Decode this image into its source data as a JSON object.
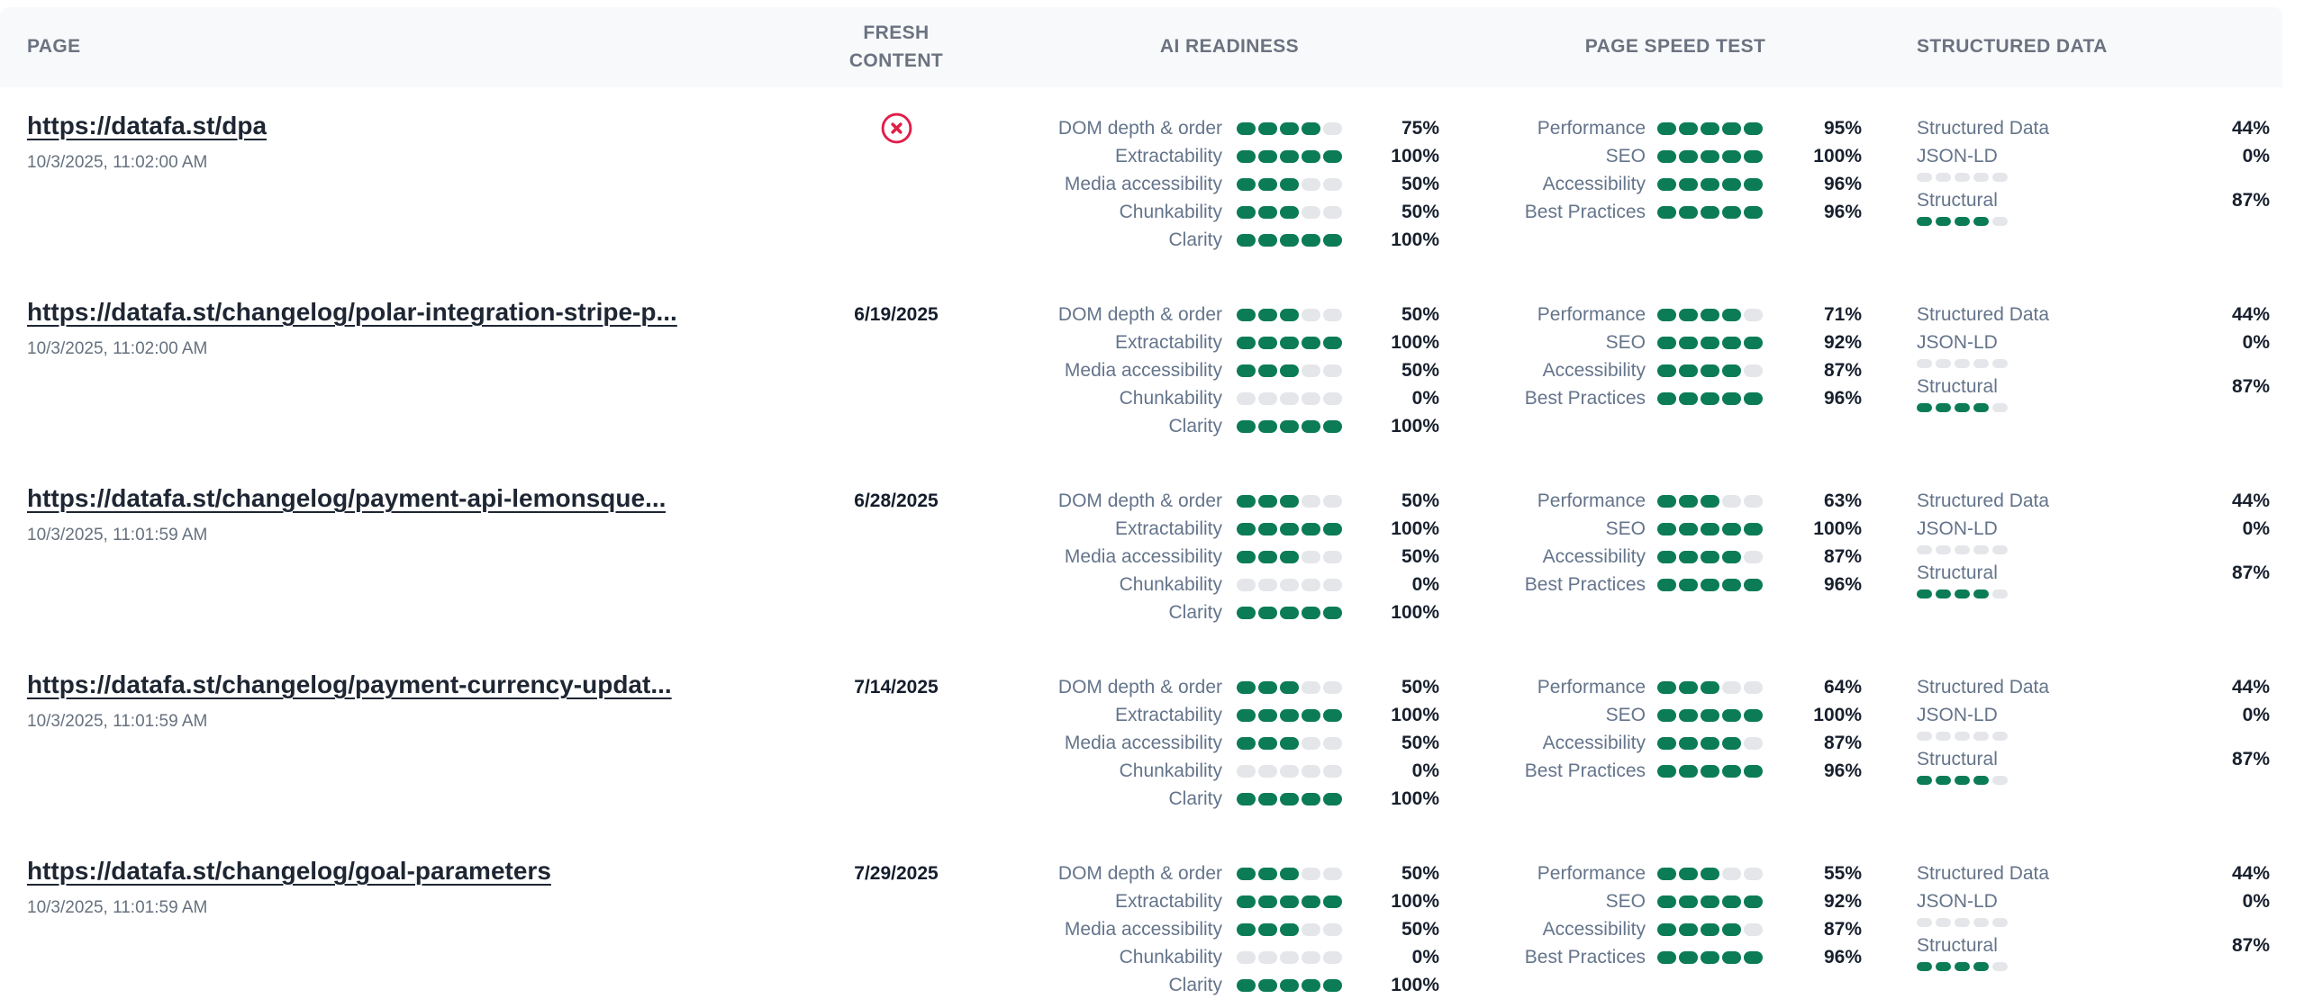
{
  "colors": {
    "green_dot": "#0b7c55",
    "empty_dot": "#e4e6ea",
    "stale_icon_red": "#e11d48"
  },
  "header": {
    "columns": [
      "PAGE",
      "FRESH CONTENT",
      "AI READINESS",
      "PAGE SPEED TEST",
      "STRUCTURED DATA"
    ]
  },
  "rows": [
    {
      "url": "https://datafa.st/dpa",
      "scanned_at": "10/3/2025, 11:02:00 AM",
      "fresh_content": {
        "value": null,
        "icon": "circle-x-icon"
      },
      "ai_readiness": [
        {
          "label": "DOM depth & order",
          "percent": "75%",
          "dots_filled": 4,
          "dots_total": 5
        },
        {
          "label": "Extractability",
          "percent": "100%",
          "dots_filled": 5,
          "dots_total": 5
        },
        {
          "label": "Media accessibility",
          "percent": "50%",
          "dots_filled": 3,
          "dots_total": 5
        },
        {
          "label": "Chunkability",
          "percent": "50%",
          "dots_filled": 3,
          "dots_total": 5
        },
        {
          "label": "Clarity",
          "percent": "100%",
          "dots_filled": 5,
          "dots_total": 5
        }
      ],
      "page_speed": [
        {
          "label": "Performance",
          "percent": "95%",
          "dots_filled": 5,
          "dots_total": 5
        },
        {
          "label": "SEO",
          "percent": "100%",
          "dots_filled": 5,
          "dots_total": 5
        },
        {
          "label": "Accessibility",
          "percent": "96%",
          "dots_filled": 5,
          "dots_total": 5
        },
        {
          "label": "Best Practices",
          "percent": "96%",
          "dots_filled": 5,
          "dots_total": 5
        }
      ],
      "structured_data": [
        {
          "label": "Structured Data",
          "percent": "44%"
        },
        {
          "label": "JSON-LD",
          "percent": "0%",
          "dots_filled": 0,
          "dots_total": 5
        },
        {
          "label": "Structural",
          "percent": "87%",
          "dots_filled": 4,
          "dots_total": 5
        }
      ]
    },
    {
      "url": "https://datafa.st/changelog/polar-integration-stripe-p...",
      "scanned_at": "10/3/2025, 11:02:00 AM",
      "fresh_content": {
        "value": "6/19/2025",
        "icon": null
      },
      "ai_readiness": [
        {
          "label": "DOM depth & order",
          "percent": "50%",
          "dots_filled": 3,
          "dots_total": 5
        },
        {
          "label": "Extractability",
          "percent": "100%",
          "dots_filled": 5,
          "dots_total": 5
        },
        {
          "label": "Media accessibility",
          "percent": "50%",
          "dots_filled": 3,
          "dots_total": 5
        },
        {
          "label": "Chunkability",
          "percent": "0%",
          "dots_filled": 0,
          "dots_total": 5
        },
        {
          "label": "Clarity",
          "percent": "100%",
          "dots_filled": 5,
          "dots_total": 5
        }
      ],
      "page_speed": [
        {
          "label": "Performance",
          "percent": "71%",
          "dots_filled": 4,
          "dots_total": 5
        },
        {
          "label": "SEO",
          "percent": "92%",
          "dots_filled": 5,
          "dots_total": 5
        },
        {
          "label": "Accessibility",
          "percent": "87%",
          "dots_filled": 4,
          "dots_total": 5
        },
        {
          "label": "Best Practices",
          "percent": "96%",
          "dots_filled": 5,
          "dots_total": 5
        }
      ],
      "structured_data": [
        {
          "label": "Structured Data",
          "percent": "44%"
        },
        {
          "label": "JSON-LD",
          "percent": "0%",
          "dots_filled": 0,
          "dots_total": 5
        },
        {
          "label": "Structural",
          "percent": "87%",
          "dots_filled": 4,
          "dots_total": 5
        }
      ]
    },
    {
      "url": "https://datafa.st/changelog/payment-api-lemonsque...",
      "scanned_at": "10/3/2025, 11:01:59 AM",
      "fresh_content": {
        "value": "6/28/2025",
        "icon": null
      },
      "ai_readiness": [
        {
          "label": "DOM depth & order",
          "percent": "50%",
          "dots_filled": 3,
          "dots_total": 5
        },
        {
          "label": "Extractability",
          "percent": "100%",
          "dots_filled": 5,
          "dots_total": 5
        },
        {
          "label": "Media accessibility",
          "percent": "50%",
          "dots_filled": 3,
          "dots_total": 5
        },
        {
          "label": "Chunkability",
          "percent": "0%",
          "dots_filled": 0,
          "dots_total": 5
        },
        {
          "label": "Clarity",
          "percent": "100%",
          "dots_filled": 5,
          "dots_total": 5
        }
      ],
      "page_speed": [
        {
          "label": "Performance",
          "percent": "63%",
          "dots_filled": 3,
          "dots_total": 5
        },
        {
          "label": "SEO",
          "percent": "100%",
          "dots_filled": 5,
          "dots_total": 5
        },
        {
          "label": "Accessibility",
          "percent": "87%",
          "dots_filled": 4,
          "dots_total": 5
        },
        {
          "label": "Best Practices",
          "percent": "96%",
          "dots_filled": 5,
          "dots_total": 5
        }
      ],
      "structured_data": [
        {
          "label": "Structured Data",
          "percent": "44%"
        },
        {
          "label": "JSON-LD",
          "percent": "0%",
          "dots_filled": 0,
          "dots_total": 5
        },
        {
          "label": "Structural",
          "percent": "87%",
          "dots_filled": 4,
          "dots_total": 5
        }
      ]
    },
    {
      "url": "https://datafa.st/changelog/payment-currency-updat...",
      "scanned_at": "10/3/2025, 11:01:59 AM",
      "fresh_content": {
        "value": "7/14/2025",
        "icon": null
      },
      "ai_readiness": [
        {
          "label": "DOM depth & order",
          "percent": "50%",
          "dots_filled": 3,
          "dots_total": 5
        },
        {
          "label": "Extractability",
          "percent": "100%",
          "dots_filled": 5,
          "dots_total": 5
        },
        {
          "label": "Media accessibility",
          "percent": "50%",
          "dots_filled": 3,
          "dots_total": 5
        },
        {
          "label": "Chunkability",
          "percent": "0%",
          "dots_filled": 0,
          "dots_total": 5
        },
        {
          "label": "Clarity",
          "percent": "100%",
          "dots_filled": 5,
          "dots_total": 5
        }
      ],
      "page_speed": [
        {
          "label": "Performance",
          "percent": "64%",
          "dots_filled": 3,
          "dots_total": 5
        },
        {
          "label": "SEO",
          "percent": "100%",
          "dots_filled": 5,
          "dots_total": 5
        },
        {
          "label": "Accessibility",
          "percent": "87%",
          "dots_filled": 4,
          "dots_total": 5
        },
        {
          "label": "Best Practices",
          "percent": "96%",
          "dots_filled": 5,
          "dots_total": 5
        }
      ],
      "structured_data": [
        {
          "label": "Structured Data",
          "percent": "44%"
        },
        {
          "label": "JSON-LD",
          "percent": "0%",
          "dots_filled": 0,
          "dots_total": 5
        },
        {
          "label": "Structural",
          "percent": "87%",
          "dots_filled": 4,
          "dots_total": 5
        }
      ]
    },
    {
      "url": "https://datafa.st/changelog/goal-parameters",
      "scanned_at": "10/3/2025, 11:01:59 AM",
      "fresh_content": {
        "value": "7/29/2025",
        "icon": null
      },
      "ai_readiness": [
        {
          "label": "DOM depth & order",
          "percent": "50%",
          "dots_filled": 3,
          "dots_total": 5
        },
        {
          "label": "Extractability",
          "percent": "100%",
          "dots_filled": 5,
          "dots_total": 5
        },
        {
          "label": "Media accessibility",
          "percent": "50%",
          "dots_filled": 3,
          "dots_total": 5
        },
        {
          "label": "Chunkability",
          "percent": "0%",
          "dots_filled": 0,
          "dots_total": 5
        },
        {
          "label": "Clarity",
          "percent": "100%",
          "dots_filled": 5,
          "dots_total": 5
        }
      ],
      "page_speed": [
        {
          "label": "Performance",
          "percent": "55%",
          "dots_filled": 3,
          "dots_total": 5
        },
        {
          "label": "SEO",
          "percent": "92%",
          "dots_filled": 5,
          "dots_total": 5
        },
        {
          "label": "Accessibility",
          "percent": "87%",
          "dots_filled": 4,
          "dots_total": 5
        },
        {
          "label": "Best Practices",
          "percent": "96%",
          "dots_filled": 5,
          "dots_total": 5
        }
      ],
      "structured_data": [
        {
          "label": "Structured Data",
          "percent": "44%"
        },
        {
          "label": "JSON-LD",
          "percent": "0%",
          "dots_filled": 0,
          "dots_total": 5
        },
        {
          "label": "Structural",
          "percent": "87%",
          "dots_filled": 4,
          "dots_total": 5
        }
      ]
    }
  ]
}
